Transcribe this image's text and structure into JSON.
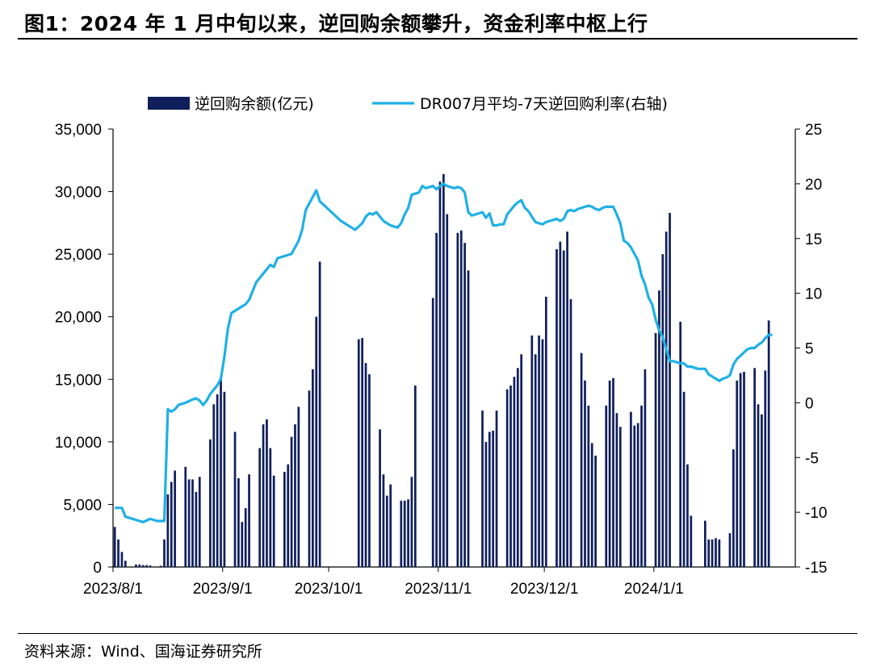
{
  "title": "图1：2024 年 1 月中旬以来，逆回购余额攀升，资金利率中枢上行",
  "source": "资料来源：Wind、国海证券研究所",
  "colors": {
    "bar": "#0f1f5c",
    "line": "#1fb0e6"
  },
  "chart_data": {
    "type": "bar+line",
    "legend_placement": "top",
    "grid": false,
    "x_tick_labels": [
      "2023/8/1",
      "2023/9/1",
      "2023/10/1",
      "2023/11/1",
      "2023/12/1",
      "2024/1/1"
    ],
    "x_range": [
      0,
      193
    ],
    "x_ticks_at": [
      0,
      31,
      61,
      92,
      122,
      153
    ],
    "y_left": {
      "range": [
        0,
        35000
      ],
      "ticks": [
        "0",
        "5,000",
        "10,000",
        "15,000",
        "20,000",
        "25,000",
        "30,000",
        "35,000"
      ]
    },
    "y_right": {
      "range": [
        -15,
        25
      ],
      "ticks": [
        "-15",
        "-10",
        "-5",
        "0",
        "5",
        "10",
        "15",
        "20",
        "25"
      ]
    },
    "series": [
      {
        "name": "逆回购余额(亿元)",
        "kind": "bar",
        "axis": "left",
        "points": [
          [
            0,
            3200
          ],
          [
            1,
            2200
          ],
          [
            2,
            1200
          ],
          [
            3,
            500
          ],
          [
            6,
            200
          ],
          [
            7,
            200
          ],
          [
            8,
            150
          ],
          [
            9,
            150
          ],
          [
            10,
            120
          ],
          [
            13,
            100
          ],
          [
            14,
            2200
          ],
          [
            15,
            5800
          ],
          [
            16,
            6800
          ],
          [
            17,
            7700
          ],
          [
            20,
            8000
          ],
          [
            21,
            7000
          ],
          [
            22,
            7000
          ],
          [
            23,
            6000
          ],
          [
            24,
            7200
          ],
          [
            27,
            10200
          ],
          [
            28,
            13000
          ],
          [
            29,
            13800
          ],
          [
            30,
            15200
          ],
          [
            31,
            14000
          ],
          [
            34,
            10800
          ],
          [
            35,
            7100
          ],
          [
            36,
            3600
          ],
          [
            37,
            4700
          ],
          [
            38,
            7400
          ],
          [
            41,
            9500
          ],
          [
            42,
            11400
          ],
          [
            43,
            11800
          ],
          [
            44,
            9500
          ],
          [
            45,
            7300
          ],
          [
            48,
            7600
          ],
          [
            49,
            8200
          ],
          [
            50,
            10400
          ],
          [
            51,
            11400
          ],
          [
            52,
            12800
          ],
          [
            55,
            14100
          ],
          [
            56,
            15800
          ],
          [
            57,
            20000
          ],
          [
            58,
            24400
          ],
          [
            69,
            18200
          ],
          [
            70,
            18300
          ],
          [
            71,
            16300
          ],
          [
            72,
            15400
          ],
          [
            75,
            11000
          ],
          [
            76,
            7400
          ],
          [
            77,
            5700
          ],
          [
            78,
            6600
          ],
          [
            81,
            5300
          ],
          [
            82,
            5300
          ],
          [
            83,
            5400
          ],
          [
            84,
            7200
          ],
          [
            85,
            14500
          ],
          [
            90,
            21500
          ],
          [
            91,
            26700
          ],
          [
            92,
            30800
          ],
          [
            93,
            31400
          ],
          [
            94,
            28200
          ],
          [
            97,
            26700
          ],
          [
            98,
            26900
          ],
          [
            99,
            25900
          ],
          [
            100,
            23700
          ],
          [
            104,
            12500
          ],
          [
            105,
            10000
          ],
          [
            106,
            10800
          ],
          [
            107,
            10900
          ],
          [
            108,
            12500
          ],
          [
            111,
            14200
          ],
          [
            112,
            14500
          ],
          [
            113,
            15200
          ],
          [
            114,
            15900
          ],
          [
            115,
            17000
          ],
          [
            118,
            18500
          ],
          [
            119,
            17000
          ],
          [
            120,
            18500
          ],
          [
            121,
            18200
          ],
          [
            122,
            21600
          ],
          [
            125,
            25400
          ],
          [
            126,
            26000
          ],
          [
            127,
            25300
          ],
          [
            128,
            26800
          ],
          [
            129,
            21400
          ],
          [
            132,
            17100
          ],
          [
            133,
            14900
          ],
          [
            134,
            12900
          ],
          [
            135,
            9900
          ],
          [
            136,
            8900
          ],
          [
            139,
            12900
          ],
          [
            140,
            14900
          ],
          [
            141,
            15100
          ],
          [
            142,
            12300
          ],
          [
            143,
            11200
          ],
          [
            146,
            12400
          ],
          [
            147,
            11300
          ],
          [
            148,
            11500
          ],
          [
            149,
            12900
          ],
          [
            150,
            15800
          ],
          [
            153,
            18700
          ],
          [
            154,
            22100
          ],
          [
            155,
            25000
          ],
          [
            156,
            26800
          ],
          [
            157,
            28300
          ],
          [
            160,
            19600
          ],
          [
            161,
            14000
          ],
          [
            162,
            8200
          ],
          [
            163,
            4100
          ],
          [
            167,
            3700
          ],
          [
            168,
            2200
          ],
          [
            169,
            2200
          ],
          [
            170,
            2300
          ],
          [
            171,
            2200
          ],
          [
            174,
            2700
          ],
          [
            175,
            9400
          ],
          [
            176,
            14900
          ],
          [
            177,
            15500
          ],
          [
            178,
            15600
          ],
          [
            181,
            15900
          ],
          [
            182,
            13000
          ],
          [
            183,
            12200
          ],
          [
            184,
            15700
          ],
          [
            185,
            19700
          ]
        ]
      },
      {
        "name": "DR007月平均-7天逆回购利率(右轴)",
        "kind": "line",
        "axis": "right",
        "points": [
          [
            0,
            -9.6
          ],
          [
            2,
            -9.6
          ],
          [
            3,
            -10.4
          ],
          [
            4,
            -10.5
          ],
          [
            6,
            -10.7
          ],
          [
            8,
            -10.9
          ],
          [
            10,
            -10.6
          ],
          [
            12,
            -10.8
          ],
          [
            14,
            -10.8
          ],
          [
            15,
            -0.6
          ],
          [
            16,
            -0.8
          ],
          [
            17,
            -0.6
          ],
          [
            18,
            -0.2
          ],
          [
            20,
            0
          ],
          [
            22,
            0.3
          ],
          [
            23,
            0.4
          ],
          [
            24,
            0.2
          ],
          [
            25,
            -0.2
          ],
          [
            26,
            0.2
          ],
          [
            27,
            0.8
          ],
          [
            28,
            1.2
          ],
          [
            29,
            1.6
          ],
          [
            30,
            2.2
          ],
          [
            31,
            4.2
          ],
          [
            32,
            6.8
          ],
          [
            33,
            8.2
          ],
          [
            34,
            8.4
          ],
          [
            35,
            8.6
          ],
          [
            36,
            8.8
          ],
          [
            37,
            9
          ],
          [
            38,
            9.4
          ],
          [
            39,
            10.2
          ],
          [
            40,
            11
          ],
          [
            42,
            11.8
          ],
          [
            44,
            12.6
          ],
          [
            45,
            12.4
          ],
          [
            46,
            13.2
          ],
          [
            48,
            13.4
          ],
          [
            50,
            13.6
          ],
          [
            52,
            14.8
          ],
          [
            53,
            15.8
          ],
          [
            54,
            17.6
          ],
          [
            55,
            18.2
          ],
          [
            56,
            18.8
          ],
          [
            57,
            19.4
          ],
          [
            58,
            18.4
          ],
          [
            60,
            17.8
          ],
          [
            62,
            17.2
          ],
          [
            64,
            16.6
          ],
          [
            66,
            16.2
          ],
          [
            68,
            15.8
          ],
          [
            70,
            16.4
          ],
          [
            71,
            17
          ],
          [
            72,
            17.3
          ],
          [
            73,
            17.2
          ],
          [
            74,
            17.4
          ],
          [
            76,
            16.6
          ],
          [
            78,
            16.2
          ],
          [
            80,
            16
          ],
          [
            81,
            16.4
          ],
          [
            82,
            17.2
          ],
          [
            83,
            17.8
          ],
          [
            84,
            19
          ],
          [
            85,
            19.1
          ],
          [
            86,
            19.2
          ],
          [
            87,
            19.8
          ],
          [
            88,
            19.6
          ],
          [
            89,
            19.7
          ],
          [
            90,
            19.8
          ],
          [
            91,
            19.5
          ],
          [
            92,
            19.8
          ],
          [
            93,
            20
          ],
          [
            94,
            19.8
          ],
          [
            95,
            19.7
          ],
          [
            96,
            19.6
          ],
          [
            97,
            19.7
          ],
          [
            98,
            19.6
          ],
          [
            99,
            19.2
          ],
          [
            100,
            17.4
          ],
          [
            101,
            17.1
          ],
          [
            102,
            17.2
          ],
          [
            103,
            17.3
          ],
          [
            104,
            17.4
          ],
          [
            105,
            16.9
          ],
          [
            106,
            17.3
          ],
          [
            107,
            16.2
          ],
          [
            108,
            16.2
          ],
          [
            109,
            16.3
          ],
          [
            110,
            16.3
          ],
          [
            111,
            17.2
          ],
          [
            112,
            17.6
          ],
          [
            113,
            18
          ],
          [
            114,
            18.3
          ],
          [
            115,
            18.5
          ],
          [
            116,
            17.8
          ],
          [
            117,
            17.5
          ],
          [
            118,
            17
          ],
          [
            119,
            16.5
          ],
          [
            120,
            16.4
          ],
          [
            121,
            16.3
          ],
          [
            122,
            16.5
          ],
          [
            123,
            16.6
          ],
          [
            124,
            16.7
          ],
          [
            125,
            16.8
          ],
          [
            126,
            16.6
          ],
          [
            127,
            16.8
          ],
          [
            128,
            17.5
          ],
          [
            129,
            17.6
          ],
          [
            130,
            17.5
          ],
          [
            131,
            17.7
          ],
          [
            132,
            17.8
          ],
          [
            133,
            17.9
          ],
          [
            134,
            18
          ],
          [
            135,
            17.9
          ],
          [
            136,
            17.7
          ],
          [
            137,
            17.6
          ],
          [
            138,
            17.8
          ],
          [
            139,
            17.9
          ],
          [
            140,
            17.9
          ],
          [
            141,
            17.9
          ],
          [
            142,
            17.2
          ],
          [
            143,
            16.4
          ],
          [
            144,
            14.8
          ],
          [
            145,
            14.6
          ],
          [
            146,
            14.2
          ],
          [
            147,
            13.6
          ],
          [
            148,
            13
          ],
          [
            149,
            11.6
          ],
          [
            150,
            10.8
          ],
          [
            151,
            9.6
          ],
          [
            152,
            9
          ],
          [
            153,
            7.6
          ],
          [
            154,
            6.6
          ],
          [
            155,
            6
          ],
          [
            156,
            4.9
          ],
          [
            157,
            3.8
          ],
          [
            158,
            3.8
          ],
          [
            159,
            3.7
          ],
          [
            160,
            3.6
          ],
          [
            161,
            3.6
          ],
          [
            162,
            3.3
          ],
          [
            163,
            3.3
          ],
          [
            164,
            3.2
          ],
          [
            165,
            3.1
          ],
          [
            166,
            3.1
          ],
          [
            167,
            3.1
          ],
          [
            168,
            2.6
          ],
          [
            169,
            2.4
          ],
          [
            170,
            2.2
          ],
          [
            171,
            2
          ],
          [
            172,
            2.2
          ],
          [
            173,
            2.3
          ],
          [
            174,
            2.5
          ],
          [
            175,
            3.5
          ],
          [
            176,
            4
          ],
          [
            177,
            4.3
          ],
          [
            178,
            4.6
          ],
          [
            179,
            4.9
          ],
          [
            180,
            5
          ],
          [
            181,
            5
          ],
          [
            182,
            5.3
          ],
          [
            183,
            5.5
          ],
          [
            184,
            5.9
          ],
          [
            185,
            6.2
          ],
          [
            186,
            6.2
          ]
        ]
      }
    ]
  }
}
